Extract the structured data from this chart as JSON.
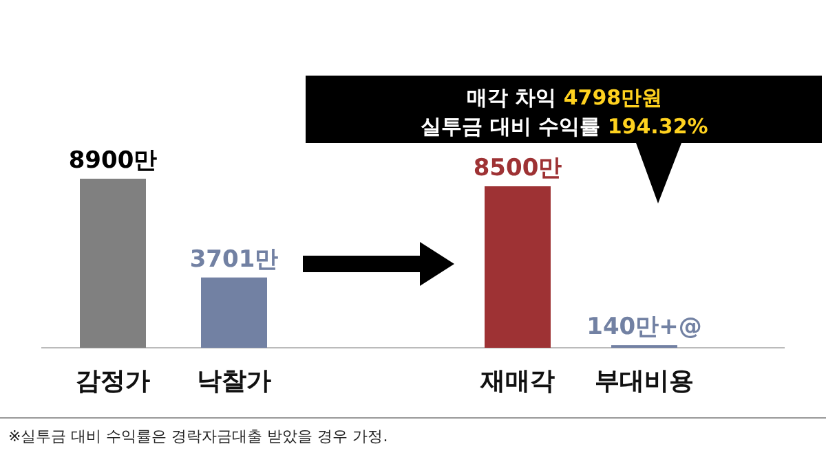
{
  "chart_data": {
    "type": "bar",
    "categories": [
      "감정가",
      "낙찰가",
      "재매각",
      "부대비용"
    ],
    "values": [
      8900,
      3701,
      8500,
      140
    ],
    "colors": [
      "#808080",
      "#7281a3",
      "#9e3234",
      "#7281a3"
    ],
    "value_labels": [
      "8900만",
      "3701만",
      "8500만",
      "140만+@"
    ],
    "annotations": [
      "매각 차익",
      "4798만원",
      "실투금 대비 수익률",
      "194.32%",
      "※실투금 대비 수익률은 경락자금대출 받았을 경우 가정."
    ]
  }
}
